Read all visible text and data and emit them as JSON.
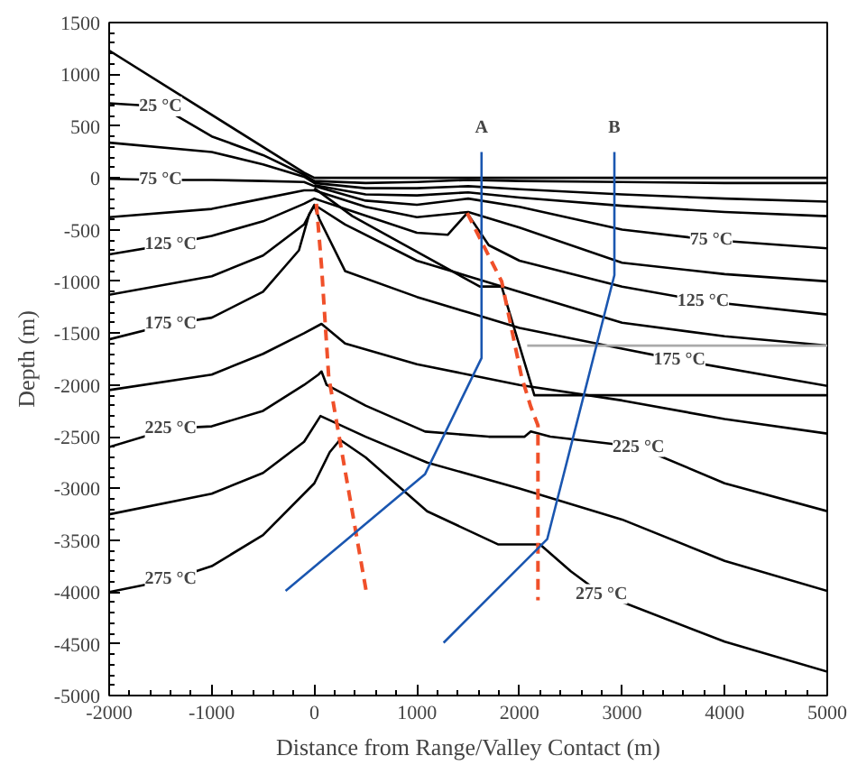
{
  "chart_data": {
    "type": "line",
    "xlabel": "Distance from Range/Valley Contact (m)",
    "ylabel": "Depth (m)",
    "xlim": [
      -2000,
      5000
    ],
    "ylim": [
      -5000,
      1500
    ],
    "xticks": [
      -2000,
      -1000,
      0,
      1000,
      2000,
      3000,
      4000,
      5000
    ],
    "yticks": [
      -5000,
      -4500,
      -4000,
      -3500,
      -3000,
      -2500,
      -2000,
      -1500,
      -1000,
      -500,
      0,
      500,
      1000,
      1500
    ],
    "grid": false,
    "line_style": "solid",
    "series": [
      {
        "color": "#000000",
        "x": [
          -2000,
          -100,
          0,
          5000
        ],
        "values": [
          1230,
          50,
          0,
          0
        ]
      },
      {
        "color": "#000000",
        "x": [
          -2000,
          -1500,
          -1000,
          -500,
          -100,
          0,
          500,
          1000,
          1500,
          2000,
          3000,
          4000,
          5000
        ],
        "values": [
          720,
          690,
          400,
          220,
          30,
          -30,
          -50,
          -40,
          -20,
          -30,
          -40,
          -50,
          -50
        ]
      },
      {
        "color": "#000000",
        "x": [
          -2000,
          -1000,
          -500,
          -100,
          0,
          500,
          1000,
          1500,
          2000,
          3000,
          4000,
          5000
        ],
        "values": [
          340,
          250,
          130,
          10,
          -50,
          -100,
          -100,
          -80,
          -110,
          -160,
          -200,
          -230
        ]
      },
      {
        "color": "#000000",
        "x": [
          0,
          500,
          1000,
          1500,
          2000,
          3000,
          4000,
          5000
        ],
        "values": [
          -70,
          -160,
          -170,
          -140,
          -190,
          -270,
          -330,
          -370
        ]
      },
      {
        "color": "#000000",
        "x": [
          -2000,
          -1500,
          -1000,
          -500,
          -100,
          0,
          500,
          1000,
          1500,
          2000,
          3000,
          3870,
          5000
        ],
        "values": [
          -10,
          -20,
          -20,
          -30,
          -40,
          -80,
          -220,
          -260,
          -200,
          -280,
          -500,
          -600,
          -680
        ]
      },
      {
        "color": "#000000",
        "x": [
          -2000,
          -1000,
          -500,
          -100,
          0,
          500,
          1000,
          1500,
          2000,
          3000,
          4000,
          5000
        ],
        "values": [
          -380,
          -300,
          -200,
          -120,
          -120,
          -280,
          -380,
          -330,
          -480,
          -820,
          -930,
          -1000
        ]
      },
      {
        "color": "#000000",
        "x": [
          -2000,
          -1400,
          -1000,
          -500,
          -100,
          0,
          300,
          1000,
          1300,
          1490,
          1700,
          2000,
          3000,
          3790,
          5000
        ],
        "values": [
          -740,
          -640,
          -560,
          -420,
          -250,
          -200,
          -300,
          -530,
          -550,
          -340,
          -650,
          -800,
          -1050,
          -1190,
          -1320
        ]
      },
      {
        "color": "#000000",
        "x": [
          -2000,
          -1000,
          -500,
          -100,
          0,
          300,
          1000,
          1500,
          2000,
          3000,
          4000,
          5000
        ],
        "values": [
          -1130,
          -950,
          -750,
          -450,
          -260,
          -450,
          -800,
          -950,
          -1100,
          -1400,
          -1530,
          -1620
        ]
      },
      {
        "color": "#000000",
        "x": [
          -2000,
          -1400,
          -1000,
          -500,
          -150,
          -50,
          0,
          50,
          300,
          1000,
          1500,
          2000,
          3000,
          3560,
          5000
        ],
        "values": [
          -1560,
          -1410,
          -1350,
          -1100,
          -700,
          -350,
          -270,
          -400,
          -900,
          -1150,
          -1300,
          -1450,
          -1650,
          -1760,
          -2010
        ]
      },
      {
        "color": "#000000",
        "x": [
          -2000,
          -1000,
          -500,
          -100,
          70,
          300,
          1000,
          1500,
          2000,
          3000,
          4000,
          5000
        ],
        "values": [
          -2050,
          -1900,
          -1700,
          -1500,
          -1410,
          -1600,
          -1800,
          -1900,
          -2000,
          -2150,
          -2330,
          -2470
        ]
      },
      {
        "color": "#000000",
        "x": [
          -2000,
          -1400,
          -1000,
          -500,
          -100,
          40,
          70,
          120,
          500,
          1080,
          1700,
          2050,
          2110,
          2300,
          3160,
          4000,
          5000
        ],
        "values": [
          -2600,
          -2420,
          -2400,
          -2250,
          -2000,
          -1900,
          -1870,
          -2000,
          -2200,
          -2450,
          -2500,
          -2500,
          -2450,
          -2500,
          -2600,
          -2950,
          -3220
        ]
      },
      {
        "color": "#000000",
        "x": [
          -2000,
          -1000,
          -500,
          -100,
          60,
          500,
          1100,
          2000,
          3000,
          4000,
          5000
        ],
        "values": [
          -3250,
          -3050,
          -2850,
          -2550,
          -2300,
          -2500,
          -2750,
          -3000,
          -3300,
          -3700,
          -3990
        ]
      },
      {
        "color": "#000000",
        "x": [
          -2000,
          -1400,
          -1000,
          -500,
          0,
          150,
          250,
          500,
          1100,
          1790,
          2200,
          2500,
          2800,
          4000,
          5000
        ],
        "values": [
          -4000,
          -3880,
          -3750,
          -3450,
          -2950,
          -2650,
          -2530,
          -2700,
          -3220,
          -3540,
          -3540,
          -3800,
          -4020,
          -4480,
          -4770
        ]
      },
      {
        "color": "#000000",
        "x": [
          0,
          372,
          1613,
          1826,
          2145,
          5000
        ],
        "values": [
          -100,
          -370,
          -1050,
          -1050,
          -2100,
          -2100
        ]
      },
      {
        "color": "#aaaaaa",
        "x": [
          2075,
          5000
        ],
        "values": [
          -1620,
          -1620
        ]
      },
      {
        "color": "#f0502a",
        "line_style": "dashed",
        "x": [
          20,
          70,
          105,
          140,
          514
        ],
        "values": [
          -250,
          -850,
          -1390,
          -1920,
          -4040
        ]
      },
      {
        "color": "#f0502a",
        "line_style": "dashed",
        "x": [
          1490,
          1826,
          2020,
          2110,
          2180,
          2180
        ],
        "values": [
          -340,
          -1000,
          -1920,
          -2210,
          -2390,
          -4080
        ]
      },
      {
        "color": "#1a56b0",
        "x": [
          1630,
          1630,
          1080,
          -280
        ],
        "values": [
          250,
          -1740,
          -2860,
          -3990
        ]
      },
      {
        "color": "#1a56b0",
        "x": [
          2925,
          2925,
          2270,
          1260
        ],
        "values": [
          250,
          -940,
          -3490,
          -4490
        ]
      }
    ],
    "annotations": [
      {
        "text": "25 °C",
        "x": -1500,
        "y": 690
      },
      {
        "text": "75 °C",
        "x": -1500,
        "y": -20
      },
      {
        "text": "125 °C",
        "x": -1400,
        "y": -640
      },
      {
        "text": "175 °C",
        "x": -1400,
        "y": -1410
      },
      {
        "text": "225 °C",
        "x": -1400,
        "y": -2420
      },
      {
        "text": "275 °C",
        "x": -1400,
        "y": -3880
      },
      {
        "text": "75 °C",
        "x": 3870,
        "y": -600
      },
      {
        "text": "125 °C",
        "x": 3790,
        "y": -1190
      },
      {
        "text": "175 °C",
        "x": 3560,
        "y": -1760
      },
      {
        "text": "225 °C",
        "x": 3160,
        "y": -2600
      },
      {
        "text": "275 °C",
        "x": 2800,
        "y": -4020
      },
      {
        "text": "A",
        "x": 1630,
        "y": 480
      },
      {
        "text": "B",
        "x": 2925,
        "y": 480
      }
    ]
  }
}
